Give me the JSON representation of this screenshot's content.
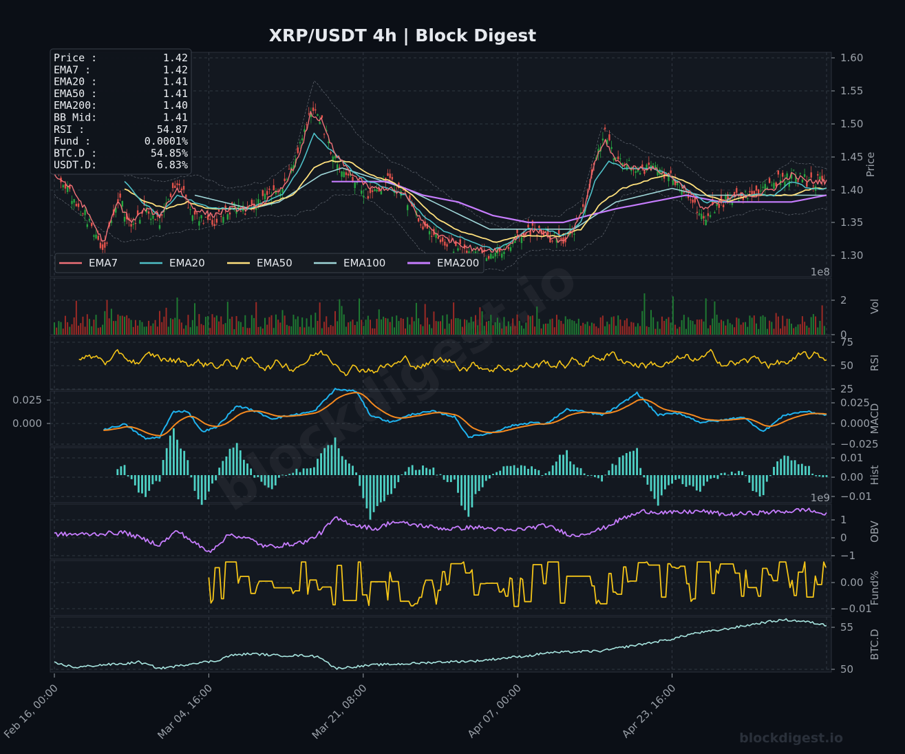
{
  "title": "XRP/USDT  4h  |  Block Digest",
  "watermark": "blockdigest.io",
  "footer_brand": "blockdigest.io",
  "colors": {
    "background": "#0b0f16",
    "panel": "#131820",
    "grid": "#3a414c",
    "up": "#26a641",
    "down": "#e5534b",
    "ema7": "#f07178",
    "ema20": "#4fc1c8",
    "ema50": "#ffe17d",
    "ema100": "#9fd6d8",
    "ema200": "#c77dff",
    "rsi": "#f5c518",
    "macd": "#1fb4f0",
    "signal": "#f5891f",
    "hist": "#4fd1c5",
    "obv": "#c77dff",
    "fund": "#f5c518",
    "btcd": "#a8e6e0",
    "bb": "#8c939d"
  },
  "info_box": {
    "rows": [
      {
        "label": "Price :",
        "value": "1.42"
      },
      {
        "label": "EMA7  :",
        "value": "1.42"
      },
      {
        "label": "EMA20 :",
        "value": "1.41"
      },
      {
        "label": "EMA50 :",
        "value": "1.41"
      },
      {
        "label": "EMA200:",
        "value": "1.40"
      },
      {
        "label": "BB Mid:",
        "value": "1.41"
      },
      {
        "label": "RSI   :",
        "value": "54.87"
      },
      {
        "label": "Fund  :",
        "value": "0.0001%"
      },
      {
        "label": "BTC.D :",
        "value": "54.85%"
      },
      {
        "label": "USDT.D:",
        "value": "6.83%"
      }
    ]
  },
  "chart_data": {
    "type": "line",
    "x_tick_labels": [
      "Feb 16, 00:00",
      "Mar 04, 16:00",
      "Mar 21, 08:00",
      "Apr 07, 00:00",
      "Apr 23, 16:00"
    ],
    "legend": [
      "EMA7",
      "EMA20",
      "EMA50",
      "EMA100",
      "EMA200"
    ],
    "legend_placement": "lower-left",
    "grid": true,
    "panels": [
      {
        "name": "price",
        "ylabel": "Price",
        "ylim": [
          1.28,
          1.61
        ],
        "ticks": [
          "1.30",
          "1.35",
          "1.40",
          "1.45",
          "1.50",
          "1.55",
          "1.60"
        ],
        "price_path": [
          [
            0,
            1.44
          ],
          [
            5,
            1.4
          ],
          [
            10,
            1.36
          ],
          [
            14,
            1.31
          ],
          [
            18,
            1.4
          ],
          [
            22,
            1.35
          ],
          [
            26,
            1.38
          ],
          [
            30,
            1.36
          ],
          [
            35,
            1.42
          ],
          [
            40,
            1.37
          ],
          [
            45,
            1.36
          ],
          [
            50,
            1.38
          ],
          [
            55,
            1.38
          ],
          [
            60,
            1.4
          ],
          [
            65,
            1.41
          ],
          [
            70,
            1.47
          ],
          [
            73,
            1.53
          ],
          [
            76,
            1.51
          ],
          [
            80,
            1.45
          ],
          [
            85,
            1.42
          ],
          [
            90,
            1.4
          ],
          [
            95,
            1.42
          ],
          [
            100,
            1.4
          ],
          [
            105,
            1.35
          ],
          [
            110,
            1.33
          ],
          [
            115,
            1.32
          ],
          [
            120,
            1.31
          ],
          [
            125,
            1.31
          ],
          [
            128,
            1.32
          ],
          [
            132,
            1.34
          ],
          [
            137,
            1.35
          ],
          [
            141,
            1.34
          ],
          [
            145,
            1.33
          ],
          [
            148,
            1.35
          ],
          [
            151,
            1.38
          ],
          [
            154,
            1.46
          ],
          [
            157,
            1.49
          ],
          [
            160,
            1.45
          ],
          [
            165,
            1.44
          ],
          [
            170,
            1.44
          ],
          [
            175,
            1.43
          ],
          [
            180,
            1.4
          ],
          [
            185,
            1.37
          ],
          [
            190,
            1.39
          ],
          [
            195,
            1.4
          ],
          [
            200,
            1.4
          ],
          [
            205,
            1.42
          ],
          [
            210,
            1.43
          ],
          [
            215,
            1.42
          ],
          [
            220,
            1.42
          ]
        ],
        "ema7": [
          [
            0,
            1.43
          ],
          [
            5,
            1.41
          ],
          [
            10,
            1.37
          ],
          [
            14,
            1.33
          ],
          [
            18,
            1.39
          ],
          [
            22,
            1.36
          ],
          [
            26,
            1.38
          ],
          [
            30,
            1.37
          ],
          [
            35,
            1.41
          ],
          [
            40,
            1.38
          ],
          [
            45,
            1.37
          ],
          [
            50,
            1.38
          ],
          [
            55,
            1.38
          ],
          [
            60,
            1.39
          ],
          [
            65,
            1.41
          ],
          [
            70,
            1.46
          ],
          [
            73,
            1.52
          ],
          [
            76,
            1.51
          ],
          [
            80,
            1.46
          ],
          [
            85,
            1.43
          ],
          [
            90,
            1.41
          ],
          [
            95,
            1.41
          ],
          [
            100,
            1.4
          ],
          [
            105,
            1.36
          ],
          [
            110,
            1.34
          ],
          [
            115,
            1.33
          ],
          [
            120,
            1.32
          ],
          [
            125,
            1.32
          ],
          [
            128,
            1.32
          ],
          [
            132,
            1.34
          ],
          [
            137,
            1.35
          ],
          [
            141,
            1.34
          ],
          [
            145,
            1.33
          ],
          [
            148,
            1.35
          ],
          [
            151,
            1.38
          ],
          [
            154,
            1.45
          ],
          [
            157,
            1.48
          ],
          [
            160,
            1.45
          ],
          [
            165,
            1.44
          ],
          [
            170,
            1.44
          ],
          [
            175,
            1.43
          ],
          [
            180,
            1.41
          ],
          [
            185,
            1.38
          ],
          [
            190,
            1.39
          ],
          [
            195,
            1.4
          ],
          [
            200,
            1.4
          ],
          [
            205,
            1.41
          ],
          [
            210,
            1.43
          ],
          [
            215,
            1.42
          ],
          [
            220,
            1.42
          ]
        ],
        "ema20": [
          [
            20,
            1.42
          ],
          [
            25,
            1.39
          ],
          [
            30,
            1.37
          ],
          [
            35,
            1.4
          ],
          [
            40,
            1.39
          ],
          [
            45,
            1.38
          ],
          [
            50,
            1.38
          ],
          [
            55,
            1.38
          ],
          [
            60,
            1.39
          ],
          [
            65,
            1.4
          ],
          [
            70,
            1.44
          ],
          [
            74,
            1.49
          ],
          [
            78,
            1.47
          ],
          [
            82,
            1.45
          ],
          [
            86,
            1.43
          ],
          [
            90,
            1.42
          ],
          [
            95,
            1.41
          ],
          [
            100,
            1.4
          ],
          [
            105,
            1.37
          ],
          [
            110,
            1.35
          ],
          [
            115,
            1.34
          ],
          [
            120,
            1.33
          ],
          [
            125,
            1.32
          ],
          [
            130,
            1.33
          ],
          [
            135,
            1.35
          ],
          [
            140,
            1.35
          ],
          [
            145,
            1.34
          ],
          [
            150,
            1.36
          ],
          [
            154,
            1.42
          ],
          [
            158,
            1.45
          ],
          [
            162,
            1.44
          ],
          [
            166,
            1.44
          ],
          [
            170,
            1.44
          ],
          [
            175,
            1.43
          ],
          [
            180,
            1.41
          ],
          [
            185,
            1.39
          ],
          [
            190,
            1.39
          ],
          [
            195,
            1.4
          ],
          [
            200,
            1.4
          ],
          [
            205,
            1.4
          ],
          [
            210,
            1.42
          ],
          [
            215,
            1.41
          ],
          [
            220,
            1.41
          ]
        ],
        "ema50": [
          [
            20,
            1.41
          ],
          [
            26,
            1.39
          ],
          [
            32,
            1.38
          ],
          [
            38,
            1.39
          ],
          [
            44,
            1.38
          ],
          [
            50,
            1.38
          ],
          [
            56,
            1.38
          ],
          [
            62,
            1.39
          ],
          [
            68,
            1.4
          ],
          [
            74,
            1.44
          ],
          [
            78,
            1.45
          ],
          [
            84,
            1.45
          ],
          [
            90,
            1.43
          ],
          [
            96,
            1.42
          ],
          [
            102,
            1.4
          ],
          [
            108,
            1.37
          ],
          [
            114,
            1.35
          ],
          [
            120,
            1.34
          ],
          [
            126,
            1.33
          ],
          [
            132,
            1.34
          ],
          [
            138,
            1.34
          ],
          [
            144,
            1.34
          ],
          [
            150,
            1.35
          ],
          [
            156,
            1.39
          ],
          [
            162,
            1.41
          ],
          [
            168,
            1.42
          ],
          [
            174,
            1.43
          ],
          [
            180,
            1.42
          ],
          [
            186,
            1.4
          ],
          [
            192,
            1.39
          ],
          [
            198,
            1.4
          ],
          [
            204,
            1.4
          ],
          [
            210,
            1.4
          ],
          [
            216,
            1.41
          ],
          [
            220,
            1.41
          ]
        ],
        "ema100": [
          [
            40,
            1.4
          ],
          [
            48,
            1.39
          ],
          [
            56,
            1.38
          ],
          [
            64,
            1.39
          ],
          [
            70,
            1.41
          ],
          [
            76,
            1.43
          ],
          [
            82,
            1.44
          ],
          [
            88,
            1.43
          ],
          [
            94,
            1.42
          ],
          [
            100,
            1.41
          ],
          [
            108,
            1.39
          ],
          [
            116,
            1.37
          ],
          [
            124,
            1.35
          ],
          [
            132,
            1.35
          ],
          [
            140,
            1.35
          ],
          [
            148,
            1.35
          ],
          [
            154,
            1.37
          ],
          [
            160,
            1.39
          ],
          [
            168,
            1.4
          ],
          [
            176,
            1.41
          ],
          [
            184,
            1.4
          ],
          [
            192,
            1.4
          ],
          [
            200,
            1.4
          ],
          [
            208,
            1.4
          ],
          [
            214,
            1.4
          ],
          [
            220,
            1.4
          ]
        ],
        "ema200": [
          [
            79,
            1.42
          ],
          [
            88,
            1.42
          ],
          [
            95,
            1.42
          ],
          [
            105,
            1.4
          ],
          [
            115,
            1.39
          ],
          [
            125,
            1.37
          ],
          [
            135,
            1.36
          ],
          [
            145,
            1.36
          ],
          [
            152,
            1.37
          ],
          [
            160,
            1.38
          ],
          [
            170,
            1.39
          ],
          [
            180,
            1.4
          ],
          [
            190,
            1.39
          ],
          [
            200,
            1.39
          ],
          [
            210,
            1.39
          ],
          [
            220,
            1.4
          ]
        ],
        "bb_upper": [
          [
            0,
            1.46
          ],
          [
            10,
            1.44
          ],
          [
            20,
            1.43
          ],
          [
            30,
            1.42
          ],
          [
            40,
            1.43
          ],
          [
            50,
            1.41
          ],
          [
            60,
            1.42
          ],
          [
            68,
            1.45
          ],
          [
            74,
            1.57
          ],
          [
            80,
            1.53
          ],
          [
            88,
            1.48
          ],
          [
            96,
            1.45
          ],
          [
            104,
            1.43
          ],
          [
            112,
            1.4
          ],
          [
            120,
            1.37
          ],
          [
            128,
            1.35
          ],
          [
            136,
            1.37
          ],
          [
            144,
            1.37
          ],
          [
            150,
            1.39
          ],
          [
            156,
            1.5
          ],
          [
            162,
            1.48
          ],
          [
            170,
            1.46
          ],
          [
            178,
            1.45
          ],
          [
            186,
            1.42
          ],
          [
            194,
            1.42
          ],
          [
            202,
            1.42
          ],
          [
            210,
            1.45
          ],
          [
            220,
            1.44
          ]
        ],
        "bb_lower": [
          [
            0,
            1.4
          ],
          [
            10,
            1.36
          ],
          [
            20,
            1.33
          ],
          [
            30,
            1.34
          ],
          [
            40,
            1.35
          ],
          [
            50,
            1.36
          ],
          [
            60,
            1.37
          ],
          [
            68,
            1.37
          ],
          [
            74,
            1.38
          ],
          [
            80,
            1.4
          ],
          [
            88,
            1.4
          ],
          [
            96,
            1.37
          ],
          [
            104,
            1.32
          ],
          [
            112,
            1.3
          ],
          [
            120,
            1.29
          ],
          [
            128,
            1.29
          ],
          [
            136,
            1.32
          ],
          [
            144,
            1.32
          ],
          [
            150,
            1.32
          ],
          [
            156,
            1.34
          ],
          [
            162,
            1.4
          ],
          [
            170,
            1.41
          ],
          [
            178,
            1.39
          ],
          [
            186,
            1.36
          ],
          [
            194,
            1.37
          ],
          [
            202,
            1.38
          ],
          [
            210,
            1.37
          ],
          [
            220,
            1.38
          ]
        ]
      },
      {
        "name": "volume",
        "ylabel": "Vol",
        "exponent": "1e8",
        "ylim": [
          0,
          2.6
        ],
        "ticks": [
          "0",
          "2"
        ]
      },
      {
        "name": "rsi",
        "ylabel": "RSI",
        "ylim": [
          22,
          78
        ],
        "ticks": [
          "25",
          "50",
          "75"
        ]
      },
      {
        "name": "macd",
        "ylabel": "MACD",
        "ylim": [
          -0.03,
          0.03
        ],
        "ticks": [
          "−0.025",
          "0.000",
          "0.025"
        ],
        "left_ticks": [
          "0.000",
          "0.025"
        ]
      },
      {
        "name": "hist",
        "ylabel": "Hist",
        "ylim": [
          -0.013,
          0.013
        ],
        "ticks": [
          "−0.01",
          "0.00",
          "0.01"
        ]
      },
      {
        "name": "obv",
        "ylabel": "OBV",
        "exponent": "1e9",
        "ylim": [
          -1.3,
          1.8
        ],
        "ticks": [
          "−1",
          "0",
          "1"
        ]
      },
      {
        "name": "fund",
        "ylabel": "Fund%",
        "ylim": [
          -0.0125,
          0.007
        ],
        "ticks": [
          "−0.01",
          "0.00"
        ]
      },
      {
        "name": "btcd",
        "ylabel": "BTC.D",
        "ylim": [
          49.8,
          55.8
        ],
        "ticks": [
          "50",
          "55"
        ]
      }
    ]
  }
}
